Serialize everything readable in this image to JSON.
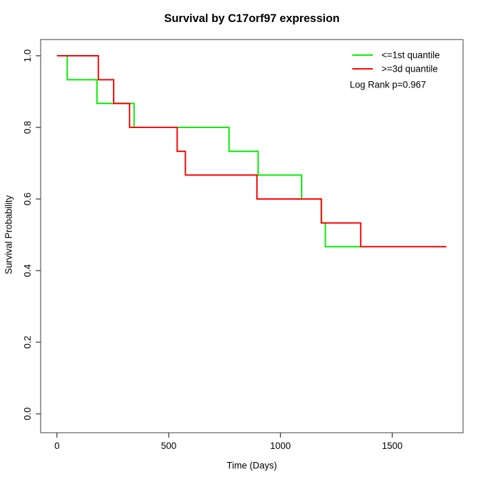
{
  "chart_data": {
    "type": "line",
    "subtype": "kaplan_meier_step",
    "title": "Survival by C17orf97 expression",
    "xlabel": "Time (Days)",
    "ylabel": "Survival Probability",
    "x_tick_labels": [
      "0",
      "500",
      "1000",
      "1500"
    ],
    "x_tick_values": [
      0,
      500,
      1000,
      1500
    ],
    "y_tick_labels": [
      "0.0",
      "0.2",
      "0.4",
      "0.6",
      "0.8",
      "1.0"
    ],
    "y_tick_values": [
      0.0,
      0.2,
      0.4,
      0.6,
      0.8,
      1.0
    ],
    "xlim": [
      -70,
      1815
    ],
    "ylim": [
      -0.04,
      1.04
    ],
    "grid": false,
    "legend_position": "top-right",
    "annotation": "Log Rank p=0.967",
    "legend": [
      {
        "label": "<=1st quantile",
        "color": "#00ee00"
      },
      {
        "label": ">=3d quantile",
        "color": "#ff0000"
      }
    ],
    "series": [
      {
        "name": "<=1st quantile",
        "color": "#00ee00",
        "step_points": [
          [
            0,
            1.0
          ],
          [
            46,
            0.933
          ],
          [
            179,
            0.867
          ],
          [
            345,
            0.8
          ],
          [
            770,
            0.733
          ],
          [
            900,
            0.667
          ],
          [
            1095,
            0.6
          ],
          [
            1183,
            0.533
          ],
          [
            1201,
            0.467
          ],
          [
            1359,
            0.467
          ]
        ]
      },
      {
        "name": ">=3d quantile",
        "color": "#ff0000",
        "step_points": [
          [
            0,
            1.0
          ],
          [
            185,
            0.933
          ],
          [
            254,
            0.867
          ],
          [
            325,
            0.8
          ],
          [
            538,
            0.733
          ],
          [
            575,
            0.667
          ],
          [
            895,
            0.6
          ],
          [
            1183,
            0.533
          ],
          [
            1359,
            0.467
          ],
          [
            1742,
            0.467
          ]
        ]
      }
    ]
  }
}
